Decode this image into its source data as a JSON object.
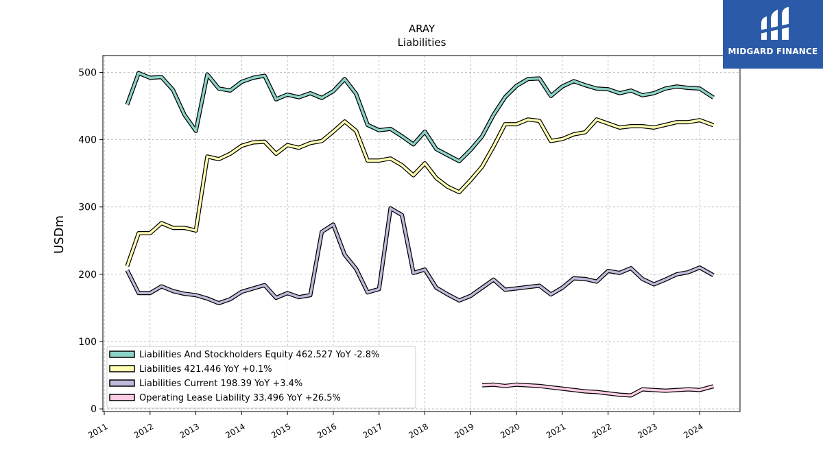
{
  "logo": {
    "brand_text": "MIDGARD FINANCE"
  },
  "chart_data": {
    "type": "line",
    "title": "ARAY",
    "subtitle": "Liabilities",
    "xlabel": "",
    "ylabel": "USDm",
    "ylim": [
      -4,
      525
    ],
    "xlim": [
      2010.97,
      2024.88
    ],
    "yticks": [
      0,
      100,
      200,
      300,
      400,
      500
    ],
    "xticks": [
      2011,
      2012,
      2013,
      2014,
      2015,
      2016,
      2017,
      2018,
      2019,
      2020,
      2021,
      2022,
      2023,
      2024
    ],
    "grid": true,
    "legend_position": "lower-left",
    "series": [
      {
        "name": "Liabilities And Stockholders Equity",
        "legend_label": "Liabilities And Stockholders Equity  462.527 YoY -2.8%",
        "color": "#8dd3c7",
        "x": [
          2011.5,
          2011.75,
          2012.0,
          2012.25,
          2012.5,
          2012.75,
          2013.0,
          2013.25,
          2013.5,
          2013.75,
          2014.0,
          2014.25,
          2014.5,
          2014.75,
          2015.0,
          2015.25,
          2015.5,
          2015.75,
          2016.0,
          2016.25,
          2016.5,
          2016.75,
          2017.0,
          2017.25,
          2017.5,
          2017.75,
          2018.0,
          2018.25,
          2018.5,
          2018.75,
          2019.0,
          2019.25,
          2019.5,
          2019.75,
          2020.0,
          2020.25,
          2020.5,
          2020.75,
          2021.0,
          2021.25,
          2021.5,
          2021.75,
          2022.0,
          2022.25,
          2022.5,
          2022.75,
          2023.0,
          2023.25,
          2023.5,
          2023.75,
          2024.0,
          2024.3
        ],
        "values": [
          452,
          499,
          492,
          493,
          474,
          437,
          413,
          497,
          476,
          473,
          486,
          492,
          495,
          460,
          467,
          463,
          469,
          462,
          472,
          490,
          468,
          422,
          414,
          416,
          405,
          393,
          412,
          386,
          377,
          368,
          385,
          405,
          437,
          463,
          480,
          490,
          491,
          465,
          479,
          487,
          481,
          476,
          475,
          469,
          473,
          466,
          469,
          476,
          479,
          477,
          476,
          462.527
        ]
      },
      {
        "name": "Liabilities",
        "legend_label": "Liabilities  421.446 YoY +0.1%",
        "color": "#ffffb3",
        "x": [
          2011.5,
          2011.75,
          2012.0,
          2012.25,
          2012.5,
          2012.75,
          2013.0,
          2013.25,
          2013.5,
          2013.75,
          2014.0,
          2014.25,
          2014.5,
          2014.75,
          2015.0,
          2015.25,
          2015.5,
          2015.75,
          2016.0,
          2016.25,
          2016.5,
          2016.75,
          2017.0,
          2017.25,
          2017.5,
          2017.75,
          2018.0,
          2018.25,
          2018.5,
          2018.75,
          2019.0,
          2019.25,
          2019.5,
          2019.75,
          2020.0,
          2020.25,
          2020.5,
          2020.75,
          2021.0,
          2021.25,
          2021.5,
          2021.75,
          2022.0,
          2022.25,
          2022.5,
          2022.75,
          2023.0,
          2023.25,
          2023.5,
          2023.75,
          2024.0,
          2024.3
        ],
        "values": [
          212,
          261,
          261,
          276,
          269,
          269,
          265,
          375,
          371,
          379,
          391,
          396,
          397,
          379,
          392,
          388,
          395,
          398,
          412,
          427,
          413,
          369,
          369,
          372,
          362,
          347,
          365,
          343,
          330,
          322,
          340,
          360,
          390,
          423,
          423,
          430,
          428,
          398,
          401,
          408,
          411,
          430,
          424,
          418,
          420,
          420,
          418,
          422,
          426,
          426,
          429,
          421.446
        ]
      },
      {
        "name": "Liabilities Current",
        "legend_label": "Liabilities Current  198.39 YoY +3.4%",
        "color": "#bebada",
        "x": [
          2011.5,
          2011.75,
          2012.0,
          2012.25,
          2012.5,
          2012.75,
          2013.0,
          2013.25,
          2013.5,
          2013.75,
          2014.0,
          2014.25,
          2014.5,
          2014.75,
          2015.0,
          2015.25,
          2015.5,
          2015.75,
          2016.0,
          2016.25,
          2016.5,
          2016.75,
          2017.0,
          2017.25,
          2017.5,
          2017.75,
          2018.0,
          2018.25,
          2018.5,
          2018.75,
          2019.0,
          2019.25,
          2019.5,
          2019.75,
          2020.0,
          2020.25,
          2020.5,
          2020.75,
          2021.0,
          2021.25,
          2021.5,
          2021.75,
          2022.0,
          2022.25,
          2022.5,
          2022.75,
          2023.0,
          2023.25,
          2023.5,
          2023.75,
          2024.0,
          2024.3
        ],
        "values": [
          206,
          172,
          172,
          182,
          175,
          171,
          169,
          164,
          157,
          163,
          174,
          179,
          184,
          165,
          172,
          166,
          169,
          263,
          274,
          229,
          208,
          173,
          178,
          298,
          288,
          202,
          207,
          180,
          170,
          161,
          168,
          180,
          192,
          177,
          179,
          181,
          183,
          170,
          180,
          194,
          193,
          189,
          205,
          202,
          209,
          193,
          185,
          192,
          200,
          203,
          210,
          198.39
        ]
      },
      {
        "name": "Operating Lease Liability",
        "legend_label": "Operating Lease Liability  33.496 YoY +26.5%",
        "color": "#fccde5",
        "x": [
          2019.25,
          2019.5,
          2019.75,
          2020.0,
          2020.25,
          2020.5,
          2020.75,
          2021.0,
          2021.25,
          2021.5,
          2021.75,
          2022.0,
          2022.25,
          2022.5,
          2022.75,
          2023.0,
          2023.25,
          2023.5,
          2023.75,
          2024.0,
          2024.3
        ],
        "values": [
          35,
          36,
          34,
          36,
          35,
          34,
          32,
          30,
          28,
          26,
          25,
          23,
          21,
          20,
          29,
          28,
          27,
          28,
          29,
          28,
          33.496
        ]
      }
    ]
  }
}
